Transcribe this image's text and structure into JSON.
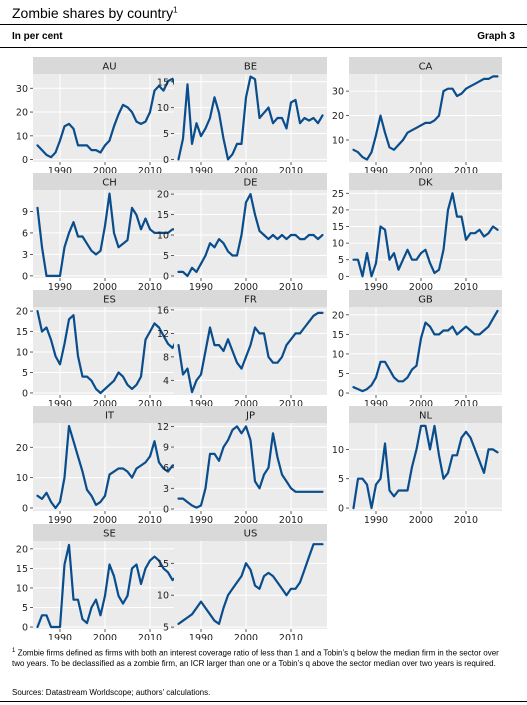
{
  "header": {
    "title": "Zombie shares by country",
    "title_sup": "1",
    "subtitle": "In per cent",
    "graph_no": "Graph 3"
  },
  "footnote": {
    "mark": "1",
    "text": " Zombie firms defined as firms with both an interest coverage ratio of less than 1 and a Tobin’s q below the median firm in the sector over two years. To be declassified as a zombie firm, an ICR larger than one or a Tobin’s q above the sector median over two years is required."
  },
  "sources": "Sources: Datastream Worldscope; authors’ calculations.",
  "style": {
    "line_color": "#0a4d8c",
    "panel_bg": "#ebebeb",
    "strip_bg": "#d9d9d9",
    "grid_color": "#ffffff"
  },
  "chart_data": [
    {
      "type": "line",
      "country": "AU",
      "x": [
        1985,
        1986,
        1987,
        1988,
        1989,
        1990,
        1991,
        1992,
        1993,
        1994,
        1995,
        1996,
        1997,
        1998,
        1999,
        2000,
        2001,
        2002,
        2003,
        2004,
        2005,
        2006,
        2007,
        2008,
        2009,
        2010,
        2011,
        2012,
        2013,
        2014,
        2015,
        2016,
        2017
      ],
      "y": [
        6,
        4,
        2,
        1,
        3,
        8,
        14,
        15,
        13,
        6,
        6,
        6,
        4,
        4,
        3,
        6,
        8,
        14,
        19,
        23,
        22,
        20,
        16,
        15,
        16,
        20,
        29,
        31,
        29,
        33,
        34,
        29,
        27
      ],
      "yticks": [
        0,
        10,
        20,
        30
      ],
      "ylim": [
        -1,
        36
      ],
      "xticks": [
        1990,
        2000,
        2010
      ],
      "xlim": [
        1984,
        2018
      ]
    },
    {
      "type": "line",
      "country": "BE",
      "x": [
        1985,
        1986,
        1987,
        1988,
        1989,
        1990,
        1991,
        1992,
        1993,
        1994,
        1995,
        1996,
        1997,
        1998,
        1999,
        2000,
        2001,
        2002,
        2003,
        2004,
        2005,
        2006,
        2007,
        2008,
        2009,
        2010,
        2011,
        2012,
        2013,
        2014,
        2015,
        2016,
        2017
      ],
      "y": [
        0,
        4,
        14.5,
        3,
        7,
        4.5,
        6,
        8,
        12,
        9,
        4,
        0,
        1,
        3,
        3,
        12,
        16,
        15.5,
        8,
        9,
        10,
        7,
        8,
        8,
        6,
        11,
        11.5,
        7,
        8,
        7.5,
        8,
        7,
        8.5
      ],
      "yticks": [
        0,
        5,
        10,
        15
      ],
      "ylim": [
        -0.5,
        16.5
      ],
      "xticks": [
        1990,
        2000,
        2010
      ],
      "xlim": [
        1984,
        2018
      ]
    },
    {
      "type": "line",
      "country": "CA",
      "x": [
        1985,
        1986,
        1987,
        1988,
        1989,
        1990,
        1991,
        1992,
        1993,
        1994,
        1995,
        1996,
        1997,
        1998,
        1999,
        2000,
        2001,
        2002,
        2003,
        2004,
        2005,
        2006,
        2007,
        2008,
        2009,
        2010,
        2011,
        2012,
        2013,
        2014,
        2015,
        2016,
        2017
      ],
      "y": [
        6,
        5,
        3,
        2,
        5,
        12,
        20,
        13,
        7,
        6,
        8,
        10,
        13,
        14,
        15,
        16,
        17,
        17,
        18,
        20,
        30,
        31,
        31,
        28,
        29,
        31,
        32,
        33,
        34,
        35,
        35,
        36,
        36
      ],
      "yticks": [
        10,
        20,
        30
      ],
      "ylim": [
        1,
        37
      ],
      "xticks": [
        1990,
        2000,
        2010
      ],
      "xlim": [
        1984,
        2018
      ]
    },
    {
      "type": "line",
      "country": "CH",
      "x": [
        1985,
        1986,
        1987,
        1988,
        1989,
        1990,
        1991,
        1992,
        1993,
        1994,
        1995,
        1996,
        1997,
        1998,
        1999,
        2000,
        2001,
        2002,
        2003,
        2004,
        2005,
        2006,
        2007,
        2008,
        2009,
        2010,
        2011,
        2012,
        2013,
        2014,
        2015,
        2016,
        2017
      ],
      "y": [
        9.5,
        4,
        0,
        0,
        0,
        0,
        4,
        6,
        7.5,
        5.5,
        5.5,
        4.5,
        3.5,
        3,
        3.5,
        7,
        11.5,
        6,
        4,
        4.5,
        5,
        9.5,
        8.5,
        6.5,
        8,
        6.5,
        6,
        6,
        6,
        6,
        6.5,
        6.5,
        7
      ],
      "yticks": [
        0,
        3,
        6,
        9
      ],
      "ylim": [
        -0.3,
        12
      ],
      "xticks": [
        1990,
        2000,
        2010
      ],
      "xlim": [
        1984,
        2018
      ]
    },
    {
      "type": "line",
      "country": "DE",
      "x": [
        1985,
        1986,
        1987,
        1988,
        1989,
        1990,
        1991,
        1992,
        1993,
        1994,
        1995,
        1996,
        1997,
        1998,
        1999,
        2000,
        2001,
        2002,
        2003,
        2004,
        2005,
        2006,
        2007,
        2008,
        2009,
        2010,
        2011,
        2012,
        2013,
        2014,
        2015,
        2016,
        2017
      ],
      "y": [
        1,
        1,
        0,
        2,
        1,
        3,
        5,
        8,
        7,
        9,
        8,
        6,
        5,
        5,
        10,
        18,
        20,
        15,
        11,
        10,
        9,
        10,
        9,
        10,
        9,
        10,
        10,
        9,
        9,
        10,
        10,
        9,
        10
      ],
      "yticks": [
        0,
        5,
        10,
        15,
        20
      ],
      "ylim": [
        -0.5,
        21
      ],
      "xticks": [
        1990,
        2000,
        2010
      ],
      "xlim": [
        1984,
        2018
      ]
    },
    {
      "type": "line",
      "country": "DK",
      "x": [
        1985,
        1986,
        1987,
        1988,
        1989,
        1990,
        1991,
        1992,
        1993,
        1994,
        1995,
        1996,
        1997,
        1998,
        1999,
        2000,
        2001,
        2002,
        2003,
        2004,
        2005,
        2006,
        2007,
        2008,
        2009,
        2010,
        2011,
        2012,
        2013,
        2014,
        2015,
        2016,
        2017
      ],
      "y": [
        5,
        5,
        0,
        7,
        0,
        4,
        15,
        14,
        5,
        7,
        2,
        5,
        8,
        5,
        5,
        7,
        8,
        4,
        1,
        2,
        8,
        20,
        25,
        18,
        18,
        11,
        13,
        13,
        14,
        12,
        13,
        15,
        14
      ],
      "yticks": [
        0,
        5,
        10,
        15,
        20,
        25
      ],
      "ylim": [
        -0.5,
        26
      ],
      "xticks": [
        1990,
        2000,
        2010
      ],
      "xlim": [
        1984,
        2018
      ]
    },
    {
      "type": "line",
      "country": "ES",
      "x": [
        1985,
        1986,
        1987,
        1988,
        1989,
        1990,
        1991,
        1992,
        1993,
        1994,
        1995,
        1996,
        1997,
        1998,
        1999,
        2000,
        2001,
        2002,
        2003,
        2004,
        2005,
        2006,
        2007,
        2008,
        2009,
        2010,
        2011,
        2012,
        2013,
        2014,
        2015,
        2016,
        2017
      ],
      "y": [
        20,
        15,
        16,
        13,
        9,
        7,
        12,
        18,
        19,
        9,
        4,
        4,
        3,
        1,
        0,
        1,
        2,
        3,
        5,
        4,
        2,
        1,
        2,
        4,
        13,
        15,
        17,
        16,
        14,
        12,
        11,
        13,
        13
      ],
      "yticks": [
        0,
        5,
        10,
        15,
        20
      ],
      "ylim": [
        -0.5,
        21
      ],
      "xticks": [
        1990,
        2000,
        2010
      ],
      "xlim": [
        1984,
        2018
      ]
    },
    {
      "type": "line",
      "country": "FR",
      "x": [
        1985,
        1986,
        1987,
        1988,
        1989,
        1990,
        1991,
        1992,
        1993,
        1994,
        1995,
        1996,
        1997,
        1998,
        1999,
        2000,
        2001,
        2002,
        2003,
        2004,
        2005,
        2006,
        2007,
        2008,
        2009,
        2010,
        2011,
        2012,
        2013,
        2014,
        2015,
        2016,
        2017
      ],
      "y": [
        10,
        5,
        6,
        2,
        4,
        5,
        9,
        13,
        10,
        10,
        9,
        11,
        9,
        7,
        6,
        8,
        10,
        13,
        12,
        12,
        8,
        7,
        7,
        8,
        10,
        11,
        12,
        12,
        13,
        14,
        15,
        15.5,
        15.5
      ],
      "yticks": [
        4,
        8,
        12,
        16
      ],
      "ylim": [
        1.5,
        16.5
      ],
      "xticks": [
        1990,
        2000,
        2010
      ],
      "xlim": [
        1984,
        2018
      ]
    },
    {
      "type": "line",
      "country": "GB",
      "x": [
        1985,
        1986,
        1987,
        1988,
        1989,
        1990,
        1991,
        1992,
        1993,
        1994,
        1995,
        1996,
        1997,
        1998,
        1999,
        2000,
        2001,
        2002,
        2003,
        2004,
        2005,
        2006,
        2007,
        2008,
        2009,
        2010,
        2011,
        2012,
        2013,
        2014,
        2015,
        2016,
        2017
      ],
      "y": [
        1.5,
        1,
        0.5,
        1,
        2,
        4,
        8,
        8,
        6,
        4,
        3,
        3,
        4,
        6,
        7,
        14,
        18,
        17,
        15,
        15,
        16,
        16,
        17,
        15,
        16,
        17,
        16,
        15,
        15,
        16,
        17,
        19,
        21
      ],
      "yticks": [
        0,
        5,
        10,
        15,
        20
      ],
      "ylim": [
        -0.5,
        22
      ],
      "xticks": [
        1990,
        2000,
        2010
      ],
      "xlim": [
        1984,
        2018
      ]
    },
    {
      "type": "line",
      "country": "IT",
      "x": [
        1985,
        1986,
        1987,
        1988,
        1989,
        1990,
        1991,
        1992,
        1993,
        1994,
        1995,
        1996,
        1997,
        1998,
        1999,
        2000,
        2001,
        2002,
        2003,
        2004,
        2005,
        2006,
        2007,
        2008,
        2009,
        2010,
        2011,
        2012,
        2013,
        2014,
        2015,
        2016,
        2017
      ],
      "y": [
        4,
        3,
        5,
        2,
        0,
        2,
        10,
        27,
        22,
        17,
        12,
        6,
        4,
        1,
        2,
        4,
        11,
        12,
        13,
        13,
        12,
        10,
        13,
        14,
        15,
        17,
        22,
        15,
        13,
        12,
        14,
        14,
        15
      ],
      "yticks": [
        0,
        10,
        20
      ],
      "ylim": [
        -1,
        28
      ],
      "xticks": [
        1990,
        2000,
        2010
      ],
      "xlim": [
        1984,
        2018
      ]
    },
    {
      "type": "line",
      "country": "JP",
      "x": [
        1985,
        1986,
        1987,
        1988,
        1989,
        1990,
        1991,
        1992,
        1993,
        1994,
        1995,
        1996,
        1997,
        1998,
        1999,
        2000,
        2001,
        2002,
        2003,
        2004,
        2005,
        2006,
        2007,
        2008,
        2009,
        2010,
        2011,
        2012,
        2013,
        2014,
        2015,
        2016,
        2017
      ],
      "y": [
        1.5,
        1.5,
        1,
        0.5,
        0.2,
        0.5,
        3,
        8,
        8,
        7,
        9,
        10,
        11.5,
        12,
        11,
        12,
        10,
        4,
        3,
        5,
        6,
        11,
        7.5,
        5,
        4,
        3,
        2.5,
        2.5,
        2.5,
        2.5,
        2.5,
        2.5,
        2.5
      ],
      "yticks": [
        0,
        3,
        6,
        9,
        12
      ],
      "ylim": [
        -0.3,
        12.5
      ],
      "xticks": [
        1990,
        2000,
        2010
      ],
      "xlim": [
        1984,
        2018
      ]
    },
    {
      "type": "line",
      "country": "NL",
      "x": [
        1985,
        1986,
        1987,
        1988,
        1989,
        1990,
        1991,
        1992,
        1993,
        1994,
        1995,
        1996,
        1997,
        1998,
        1999,
        2000,
        2001,
        2002,
        2003,
        2004,
        2005,
        2006,
        2007,
        2008,
        2009,
        2010,
        2011,
        2012,
        2013,
        2014,
        2015,
        2016,
        2017
      ],
      "y": [
        0,
        5,
        5,
        4,
        0,
        4,
        5,
        11,
        3,
        2,
        3,
        3,
        3,
        7,
        10,
        14,
        14,
        10,
        14,
        9,
        5,
        6,
        9,
        9,
        12,
        13,
        12,
        10,
        8,
        6,
        10,
        10,
        9.5
      ],
      "yticks": [
        0,
        5,
        10
      ],
      "ylim": [
        -0.5,
        14.5
      ],
      "xticks": [
        1990,
        2000,
        2010
      ],
      "xlim": [
        1984,
        2018
      ]
    },
    {
      "type": "line",
      "country": "SE",
      "x": [
        1985,
        1986,
        1987,
        1988,
        1989,
        1990,
        1991,
        1992,
        1993,
        1994,
        1995,
        1996,
        1997,
        1998,
        1999,
        2000,
        2001,
        2002,
        2003,
        2004,
        2005,
        2006,
        2007,
        2008,
        2009,
        2010,
        2011,
        2012,
        2013,
        2014,
        2015,
        2016,
        2017
      ],
      "y": [
        0,
        3,
        3,
        0,
        0,
        0,
        16,
        21,
        7,
        7,
        2,
        1,
        5,
        7,
        3,
        8,
        16,
        13,
        8,
        6,
        8,
        15,
        16,
        11,
        15,
        17,
        18,
        17,
        15,
        14,
        12,
        13,
        12
      ],
      "yticks": [
        0,
        5,
        10,
        15,
        20
      ],
      "ylim": [
        -0.5,
        22
      ],
      "xticks": [
        1990,
        2000,
        2010
      ],
      "xlim": [
        1984,
        2018
      ]
    },
    {
      "type": "line",
      "country": "US",
      "x": [
        1985,
        1986,
        1987,
        1988,
        1989,
        1990,
        1991,
        1992,
        1993,
        1994,
        1995,
        1996,
        1997,
        1998,
        1999,
        2000,
        2001,
        2002,
        2003,
        2004,
        2005,
        2006,
        2007,
        2008,
        2009,
        2010,
        2011,
        2012,
        2013,
        2014,
        2015,
        2016,
        2017
      ],
      "y": [
        5.5,
        6,
        6.5,
        7,
        8,
        9,
        8,
        7,
        6,
        5.5,
        8,
        10,
        11,
        12,
        13,
        15,
        14,
        11.5,
        11,
        13,
        13.5,
        13,
        12,
        11,
        10,
        11,
        11,
        12,
        14,
        16,
        18,
        18,
        18
      ],
      "yticks": [
        5,
        10,
        15
      ],
      "ylim": [
        4.7,
        18.5
      ],
      "xticks": [
        1990,
        2000,
        2010
      ],
      "xlim": [
        1984,
        2018
      ]
    }
  ]
}
